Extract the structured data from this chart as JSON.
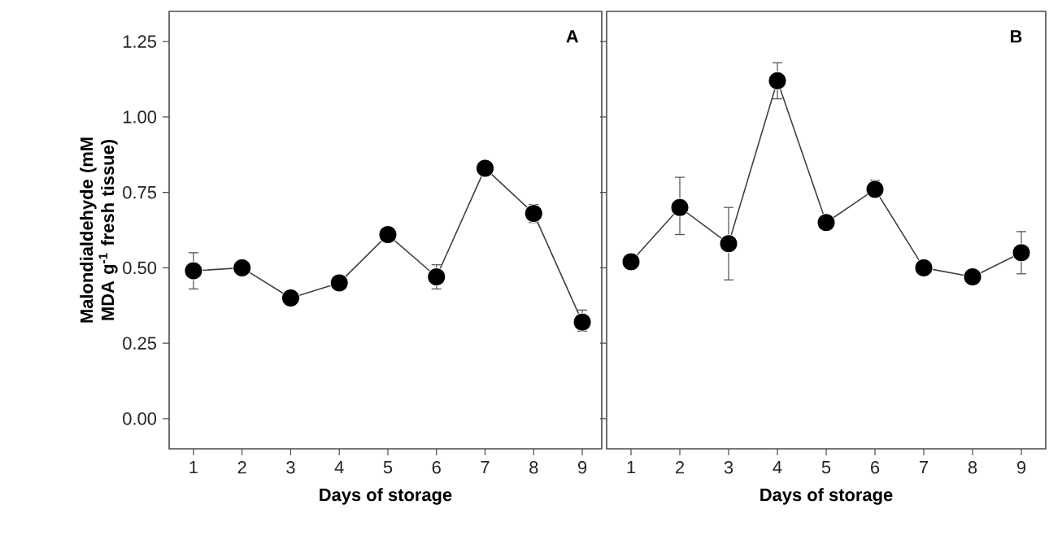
{
  "chart_data": [
    {
      "type": "line",
      "annotations": [
        "A"
      ],
      "xlabel": "Days of storage",
      "ylabel": "Malondialdehyde (mM MDA g$^{-1}$ fresh tissue)",
      "marker": "circle",
      "line_style": "solid",
      "x": [
        1,
        2,
        3,
        4,
        5,
        6,
        7,
        8,
        9
      ],
      "xlim": [
        0.5,
        9.4
      ],
      "xticks": [
        1,
        2,
        3,
        4,
        5,
        6,
        7,
        8,
        9
      ],
      "ylim": [
        -0.1,
        1.35
      ],
      "yticks": [
        {
          "value": 0,
          "label": "0.00"
        },
        {
          "value": 0.25,
          "label": "0.25"
        },
        {
          "value": 0.5,
          "label": "0.50"
        },
        {
          "value": 0.75,
          "label": "0.75"
        },
        {
          "value": 1.0,
          "label": "1.00"
        },
        {
          "value": 1.25,
          "label": "1.25"
        }
      ],
      "series": [
        {
          "color": "#000000",
          "values": [
            0.49,
            0.5,
            0.4,
            0.45,
            0.61,
            0.47,
            0.83,
            0.68,
            0.32
          ],
          "errors": [
            [
              0.43,
              0.55
            ],
            null,
            null,
            [
              0.43,
              0.47
            ],
            null,
            [
              0.43,
              0.51
            ],
            null,
            [
              0.65,
              0.71
            ],
            [
              0.29,
              0.36
            ]
          ]
        }
      ]
    },
    {
      "type": "line",
      "annotations": [
        "B"
      ],
      "xlabel": "Days of storage",
      "marker": "circle",
      "line_style": "solid",
      "tick_labels": "x",
      "x": [
        1,
        2,
        3,
        4,
        5,
        6,
        7,
        8,
        9
      ],
      "xlim": [
        0.5,
        9.5
      ],
      "xticks": [
        1,
        2,
        3,
        4,
        5,
        6,
        7,
        8,
        9
      ],
      "ylim": [
        -0.1,
        1.35
      ],
      "yticks": [
        {
          "value": 0,
          "label": null
        },
        {
          "value": 0.25,
          "label": null
        },
        {
          "value": 0.5,
          "label": null
        },
        {
          "value": 0.75,
          "label": null
        },
        {
          "value": 1.0,
          "label": null
        },
        {
          "value": 1.25,
          "label": null
        }
      ],
      "series": [
        {
          "color": "#000000",
          "values": [
            0.52,
            0.7,
            0.58,
            1.12,
            0.65,
            0.76,
            0.5,
            0.47,
            0.55
          ],
          "errors": [
            null,
            [
              0.61,
              0.8
            ],
            [
              0.46,
              0.7
            ],
            [
              1.06,
              1.18
            ],
            null,
            [
              0.74,
              0.79
            ],
            null,
            null,
            [
              0.48,
              0.62
            ]
          ]
        }
      ]
    }
  ]
}
